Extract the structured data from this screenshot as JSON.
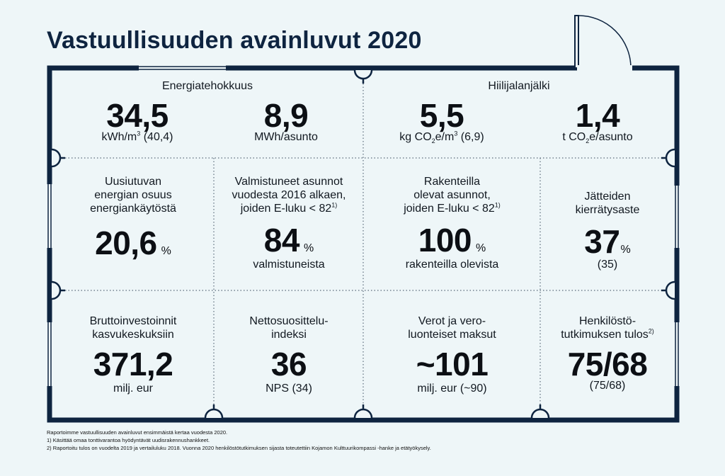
{
  "title": "Vastuullisuuden avainluvut 2020",
  "colors": {
    "frame": "#0e2440",
    "background": "#eef6f8",
    "text": "#111820"
  },
  "sections": {
    "energy": {
      "heading": "Energiatehokkuus"
    },
    "carbon": {
      "heading": "Hiilijalanjälki"
    }
  },
  "metrics": {
    "energy_kwh": {
      "value": "34,5",
      "unit_prefix": "kWh/m",
      "unit_sup": "3",
      "unit_suffix": " (40,4)"
    },
    "energy_mwh": {
      "value": "8,9",
      "unit": "MWh/asunto"
    },
    "carbon_kg": {
      "value": "5,5",
      "unit_a": "kg CO",
      "unit_sub": "2",
      "unit_b": "e/m",
      "unit_sup": "3",
      "unit_c": " (6,9)"
    },
    "carbon_t": {
      "value": "1,4",
      "unit_a": "t CO",
      "unit_sub": "2",
      "unit_b": "e/asunto"
    },
    "renewable": {
      "line1": "Uusiutuvan",
      "line2": "energian osuus",
      "line3": "energiankäytöstä",
      "value": "20,6",
      "unit": "%"
    },
    "completed": {
      "line1": "Valmistuneet asunnot",
      "line2": "vuodesta 2016 alkaen,",
      "line3": "joiden E-luku < 82",
      "note": "1)",
      "value": "84",
      "unit": "%",
      "sub": "valmistuneista"
    },
    "under_construction": {
      "line1": "Rakenteilla",
      "line2": "olevat asunnot,",
      "line3": "joiden E-luku < 82",
      "note": "1)",
      "value": "100",
      "unit": "%",
      "sub": "rakenteilla olevista"
    },
    "recycling": {
      "line1": "Jätteiden",
      "line2": "kierrätysaste",
      "value": "37",
      "unit": "%",
      "sub": "(35)"
    },
    "investments": {
      "line1": "Bruttoinvestoinnit",
      "line2": "kasvukeskuksiin",
      "value": "371,2",
      "sub": "milj. eur"
    },
    "nps": {
      "line1": "Nettosuosittelu-",
      "line2": "indeksi",
      "value": "36",
      "sub": "NPS (34)"
    },
    "taxes": {
      "line1": "Verot ja vero-",
      "line2": "luonteiset maksut",
      "value": "~101",
      "sub": "milj. eur (~90)"
    },
    "survey": {
      "line1": "Henkilöstö-",
      "line2": "tutkimuksen tulos",
      "note": "2)",
      "value": "75/68",
      "sub": "(75/68)"
    }
  },
  "footnotes": {
    "intro": "Raportoimme vastuullisuuden avainluvut ensimmäistä kertaa vuodesta 2020.",
    "note1": "1) Käsittää omaa tonttivarantoa hyödyntävät uudisrakennushankkeet.",
    "note2": "2) Raportoitu tulos on vuodelta 2019 ja vertailuluku 2018. Vuonna 2020 henkilöstötutkimuksen sijasta toteutettiin Kojamon Kulttuurikompassi -hanke ja etätyökysely."
  }
}
